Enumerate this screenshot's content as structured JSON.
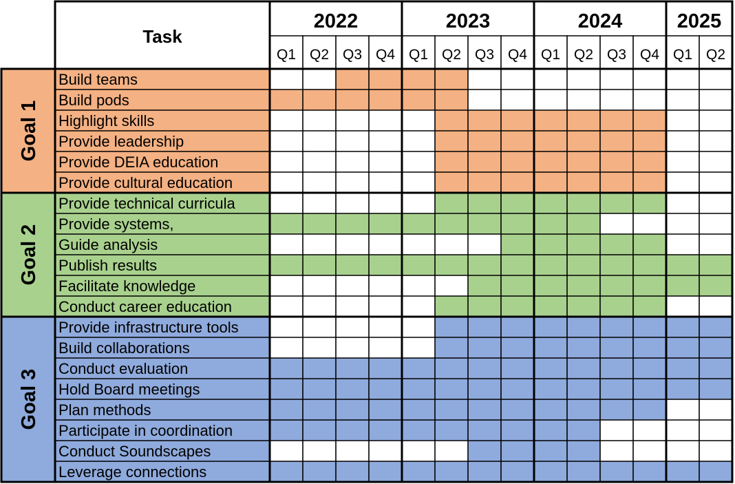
{
  "colors": {
    "goal1": "#F4B183",
    "goal2": "#A9D18E",
    "goal3": "#8FAADC",
    "empty": "#FFFFFF",
    "grid": "#000000"
  },
  "header": {
    "task_label": "Task",
    "years": [
      {
        "label": "2022",
        "quarters": [
          "Q1",
          "Q2",
          "Q3",
          "Q4"
        ]
      },
      {
        "label": "2023",
        "quarters": [
          "Q1",
          "Q2",
          "Q3",
          "Q4"
        ]
      },
      {
        "label": "2024",
        "quarters": [
          "Q1",
          "Q2",
          "Q3",
          "Q4"
        ]
      },
      {
        "label": "2025",
        "quarters": [
          "Q1",
          "Q2"
        ]
      }
    ]
  },
  "chart_data": {
    "type": "table",
    "goals": [
      {
        "label": "Goal 1",
        "color": "goal1",
        "tasks": [
          {
            "name": "Build teams",
            "active": [
              0,
              0,
              1,
              1,
              1,
              1,
              0,
              0,
              0,
              0,
              0,
              0,
              0,
              0
            ]
          },
          {
            "name": "Build pods",
            "active": [
              1,
              1,
              1,
              1,
              1,
              1,
              0,
              0,
              0,
              0,
              0,
              0,
              0,
              0
            ]
          },
          {
            "name": "Highlight skills",
            "active": [
              0,
              0,
              0,
              0,
              0,
              1,
              1,
              1,
              1,
              1,
              1,
              1,
              0,
              0
            ]
          },
          {
            "name": "Provide leadership",
            "active": [
              0,
              0,
              0,
              0,
              0,
              1,
              1,
              1,
              1,
              1,
              1,
              1,
              0,
              0
            ]
          },
          {
            "name": "Provide DEIA education",
            "active": [
              0,
              0,
              0,
              0,
              0,
              1,
              1,
              1,
              1,
              1,
              1,
              1,
              0,
              0
            ]
          },
          {
            "name": "Provide cultural education",
            "active": [
              0,
              0,
              0,
              0,
              0,
              1,
              1,
              1,
              1,
              1,
              1,
              1,
              0,
              0
            ]
          }
        ]
      },
      {
        "label": "Goal 2",
        "color": "goal2",
        "tasks": [
          {
            "name": "Provide technical curricula",
            "active": [
              0,
              0,
              0,
              0,
              0,
              1,
              1,
              1,
              1,
              1,
              1,
              1,
              0,
              0
            ]
          },
          {
            "name": "Provide systems,",
            "active": [
              1,
              1,
              1,
              1,
              1,
              1,
              1,
              1,
              1,
              1,
              0,
              0,
              0,
              0
            ]
          },
          {
            "name": "Guide analysis",
            "active": [
              0,
              0,
              0,
              0,
              0,
              0,
              0,
              1,
              1,
              1,
              1,
              1,
              0,
              0
            ]
          },
          {
            "name": "Publish results",
            "active": [
              1,
              1,
              1,
              1,
              1,
              1,
              1,
              1,
              1,
              1,
              1,
              1,
              1,
              1
            ]
          },
          {
            "name": "Facilitate knowledge",
            "active": [
              0,
              0,
              0,
              0,
              0,
              0,
              1,
              1,
              1,
              1,
              1,
              1,
              1,
              1
            ]
          },
          {
            "name": "Conduct career education",
            "active": [
              0,
              0,
              0,
              0,
              0,
              1,
              1,
              1,
              1,
              1,
              1,
              1,
              0,
              0
            ]
          }
        ]
      },
      {
        "label": "Goal 3",
        "color": "goal3",
        "tasks": [
          {
            "name": "Provide infrastructure tools",
            "active": [
              0,
              0,
              0,
              0,
              0,
              1,
              1,
              1,
              1,
              1,
              1,
              1,
              1,
              1
            ]
          },
          {
            "name": "Build collaborations",
            "active": [
              0,
              0,
              0,
              0,
              0,
              1,
              1,
              1,
              1,
              1,
              1,
              1,
              1,
              1
            ]
          },
          {
            "name": "Conduct evaluation",
            "active": [
              1,
              1,
              1,
              1,
              1,
              1,
              1,
              1,
              1,
              1,
              1,
              1,
              1,
              1
            ]
          },
          {
            "name": "Hold Board meetings",
            "active": [
              1,
              1,
              1,
              1,
              1,
              1,
              1,
              1,
              1,
              1,
              1,
              1,
              1,
              1
            ]
          },
          {
            "name": "Plan methods",
            "active": [
              1,
              1,
              1,
              1,
              1,
              1,
              1,
              1,
              1,
              1,
              1,
              1,
              0,
              0
            ]
          },
          {
            "name": "Participate in coordination",
            "active": [
              1,
              1,
              1,
              1,
              1,
              1,
              1,
              1,
              1,
              1,
              0,
              0,
              0,
              0
            ]
          },
          {
            "name": "Conduct Soundscapes",
            "active": [
              0,
              0,
              0,
              0,
              0,
              0,
              1,
              1,
              1,
              1,
              0,
              0,
              0,
              0
            ]
          },
          {
            "name": "Leverage connections",
            "active": [
              1,
              1,
              1,
              1,
              1,
              1,
              1,
              1,
              1,
              1,
              1,
              1,
              1,
              1
            ]
          }
        ]
      }
    ]
  }
}
